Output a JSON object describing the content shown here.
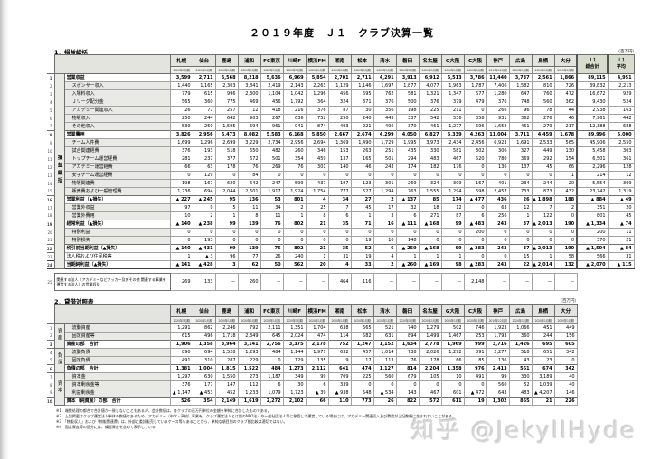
{
  "page": {
    "title": "２０１９年度　Ｊ１　クラブ決算一覧",
    "watermark": "知乎 @JekyllHyde"
  },
  "clubs": [
    "札幌",
    "仙台",
    "鹿島",
    "浦和",
    "FC東京",
    "川崎F",
    "横浜FM",
    "湘南",
    "松本",
    "清水",
    "磐田",
    "名古屋",
    "G大阪",
    "C大阪",
    "神戸",
    "広島",
    "鳥栖",
    "大分"
  ],
  "periods": [
    "2020年1月期",
    "2020年1月期",
    "2020年1月期",
    "2020年1月期",
    "2020年1月期",
    "2020年1月期",
    "2020年1月期",
    "2020年1月期",
    "2020年1月期",
    "2020年1月期",
    "2020年1月期",
    "2020年1月期",
    "2020年1月期",
    "2020年1月期",
    "2019年12月期",
    "2020年1月期",
    "2020年1月期",
    "2020年1月期"
  ],
  "summary_columns": [
    "Ｊ１\n総合計",
    "Ｊ１\n平均"
  ],
  "pl": {
    "section_title": "1．損益総括",
    "unit_label": "（百万円）",
    "group_label": "損益総括",
    "rows": [
      {
        "num": 1,
        "label": "営業収益",
        "level": 0,
        "bold": true,
        "values": [
          "3,599",
          "2,711",
          "6,568",
          "8,218",
          "5,636",
          "6,969",
          "5,854",
          "2,701",
          "2,711",
          "4,291",
          "3,913",
          "6,912",
          "6,513",
          "3,786",
          "11,440",
          "3,737",
          "2,561",
          "1,866",
          "89,115",
          "4,951"
        ]
      },
      {
        "num": 2,
        "label": "スポンサー収入",
        "level": 1,
        "bold": false,
        "values": [
          "1,440",
          "1,165",
          "2,303",
          "3,841",
          "2,419",
          "2,143",
          "2,263",
          "1,129",
          "1,146",
          "1,697",
          "1,877",
          "4,077",
          "1,963",
          "1,787",
          "7,406",
          "1,582",
          "810",
          "726",
          "39,832",
          "2,213"
        ]
      },
      {
        "num": 3,
        "label": "入場料収入",
        "level": 1,
        "bold": false,
        "values": [
          "779",
          "615",
          "996",
          "2,300",
          "1,104",
          "1,042",
          "1,296",
          "456",
          "695",
          "762",
          "581",
          "1,321",
          "1,347",
          "677",
          "1,280",
          "647",
          "760",
          "472",
          "16,672",
          "929"
        ]
      },
      {
        "num": 4,
        "label": "Ｊリーグ配分金",
        "level": 1,
        "bold": false,
        "values": [
          "565",
          "360",
          "775",
          "469",
          "456",
          "1,792",
          "364",
          "324",
          "371",
          "376",
          "500",
          "376",
          "379",
          "479",
          "376",
          "748",
          "560",
          "362",
          "9,430",
          "524"
        ]
      },
      {
        "num": 5,
        "label": "アカデミー関連収入",
        "level": 1,
        "bold": false,
        "values": [
          "26",
          "77",
          "257",
          "12",
          "418",
          "216",
          "376",
          "87",
          "30",
          "356",
          "198",
          "225",
          "211",
          "0",
          "266",
          "96",
          "78",
          "44",
          "2,938",
          "163"
        ]
      },
      {
        "num": 6,
        "label": "物販収入",
        "level": 1,
        "bold": false,
        "values": [
          "250",
          "244",
          "642",
          "903",
          "267",
          "636",
          "752",
          "250",
          "240",
          "443",
          "337",
          "542",
          "536",
          "358",
          "931",
          "362",
          "276",
          "46",
          "7,961",
          "442"
        ]
      },
      {
        "num": 7,
        "label": "その他収入",
        "level": 1,
        "bold": false,
        "values": [
          "539",
          "250",
          "1,595",
          "694",
          "961",
          "941",
          "874",
          "493",
          "221",
          "496",
          "370",
          "461",
          "1,277",
          "696",
          "1,652",
          "461",
          "279",
          "217",
          "12,388",
          "688"
        ]
      },
      {
        "num": 8,
        "label": "営業費用",
        "level": 0,
        "bold": true,
        "values": [
          "3,826",
          "2,956",
          "6,473",
          "8,082",
          "5,583",
          "6,168",
          "5,850",
          "2,667",
          "2,674",
          "4,299",
          "4,050",
          "6,827",
          "6,339",
          "4,263",
          "11,004",
          "3,711",
          "4,459",
          "1,678",
          "89,996",
          "5,000"
        ]
      },
      {
        "num": 9,
        "label": "チーム人件費",
        "level": 1,
        "bold": false,
        "values": [
          "1,699",
          "1,296",
          "2,699",
          "3,229",
          "2,734",
          "2,956",
          "2,694",
          "1,369",
          "1,490",
          "1,729",
          "1,995",
          "3,973",
          "2,434",
          "2,456",
          "6,923",
          "1,691",
          "2,533",
          "565",
          "45,906",
          "2,550"
        ]
      },
      {
        "num": 10,
        "label": "試合関連経費",
        "level": 1,
        "bold": false,
        "values": [
          "376",
          "193",
          "518",
          "650",
          "482",
          "260",
          "346",
          "153",
          "263",
          "251",
          "435",
          "330",
          "581",
          "302",
          "306",
          "327",
          "449",
          "130",
          "5,458",
          "303"
        ]
      },
      {
        "num": 11,
        "label": "トップチーム運営経費",
        "level": 1,
        "bold": false,
        "values": [
          "281",
          "237",
          "377",
          "672",
          "501",
          "354",
          "459",
          "137",
          "165",
          "501",
          "294",
          "483",
          "467",
          "520",
          "780",
          "369",
          "292",
          "154",
          "6,501",
          "361"
        ]
      },
      {
        "num": 12,
        "label": "アカデミー運営経費",
        "level": 1,
        "bold": false,
        "values": [
          "66",
          "63",
          "178",
          "76",
          "269",
          "76",
          "301",
          "140",
          "46",
          "243",
          "174",
          "182",
          "176",
          "0",
          "136",
          "137",
          "45",
          "66",
          "2,296",
          "128"
        ]
      },
      {
        "num": 13,
        "label": "女子チーム運営経費",
        "level": 1,
        "bold": false,
        "values": [
          "0",
          "129",
          "0",
          "84",
          "0",
          "0",
          "0",
          "0",
          "0",
          "0",
          "0",
          "0",
          "0",
          "0",
          "0",
          "0",
          "0",
          "1",
          "214",
          "12"
        ]
      },
      {
        "num": 14,
        "label": "物販関連費",
        "level": 1,
        "bold": false,
        "values": [
          "198",
          "167",
          "620",
          "642",
          "247",
          "599",
          "437",
          "197",
          "123",
          "301",
          "269",
          "324",
          "399",
          "167",
          "401",
          "234",
          "244",
          "20",
          "5,554",
          "309"
        ]
      },
      {
        "num": 15,
        "label": "販売費および一般管理費",
        "level": 1,
        "bold": false,
        "values": [
          "1,236",
          "694",
          "2,044",
          "2,601",
          "1,917",
          "1,924",
          "1,754",
          "777",
          "627",
          "1,294",
          "763",
          "1,555",
          "1,294",
          "698",
          "2,457",
          "733",
          "873",
          "432",
          "23,742",
          "1,319"
        ]
      },
      {
        "num": 16,
        "label": "営業利益（▲損失）",
        "level": 0,
        "bold": true,
        "values": [
          "▲ 227",
          "▲ 245",
          "95",
          "136",
          "53",
          "801",
          "4",
          "34",
          "27",
          "2",
          "▲ 137",
          "85",
          "174",
          "▲ 477",
          "436",
          "26",
          "▲ 1,898",
          "188",
          "▲ 884",
          "▲ 49"
        ]
      },
      {
        "num": 17,
        "label": "営業外収益",
        "level": 1,
        "bold": false,
        "values": [
          "97",
          "9",
          "5",
          "11",
          "34",
          "2",
          "25",
          "7",
          "45",
          "17",
          "32",
          "18",
          "12",
          "0",
          "63",
          "12",
          "7",
          "2",
          "351",
          "20"
        ]
      },
      {
        "num": 18,
        "label": "営業外費用",
        "level": 1,
        "bold": false,
        "values": [
          "10",
          "2",
          "1",
          "8",
          "11",
          "1",
          "8",
          "6",
          "1",
          "3",
          "6",
          "271",
          "87",
          "6",
          "256",
          "1",
          "122",
          "0",
          "801",
          "45"
        ]
      },
      {
        "num": 19,
        "label": "経常利益（▲損失）",
        "level": 0,
        "bold": true,
        "values": [
          "▲ 140",
          "▲ 238",
          "99",
          "139",
          "76",
          "802",
          "21",
          "35",
          "71",
          "16",
          "▲ 111",
          "▲ 168",
          "99",
          "▲ 483",
          "243",
          "37",
          "▲ 2,013",
          "190",
          "▲ 1,334",
          "▲ 74"
        ]
      },
      {
        "num": 20,
        "label": "特別利益",
        "level": 1,
        "bold": false,
        "values": [
          "0",
          "0",
          "0",
          "0",
          "0",
          "0",
          "0",
          "0",
          "0",
          "0",
          "0",
          "0",
          "0",
          "200",
          "0",
          "0",
          "0",
          "0",
          "200",
          "11"
        ]
      },
      {
        "num": 21,
        "label": "特別損失",
        "level": 1,
        "bold": false,
        "values": [
          "0",
          "193",
          "0",
          "0",
          "0",
          "0",
          "0",
          "0",
          "19",
          "10",
          "148",
          "0",
          "0",
          "0",
          "0",
          "0",
          "0",
          "0",
          "370",
          "21"
        ]
      },
      {
        "num": 22,
        "label": "税引前当期利益（▲損失）",
        "level": 0,
        "bold": true,
        "values": [
          "▲ 140",
          "▲ 431",
          "99",
          "139",
          "76",
          "802",
          "21",
          "35",
          "52",
          "6",
          "▲ 259",
          "▲ 168",
          "99",
          "▲ 283",
          "243",
          "37",
          "▲ 2,013",
          "190",
          "▲ 1,504",
          "▲ 84"
        ]
      },
      {
        "num": 23,
        "label": "法人税および住民税等",
        "level": 0,
        "bold": false,
        "values": [
          "1",
          "▲ 3",
          "96",
          "77",
          "26",
          "240",
          "1",
          "31",
          "19",
          "4",
          "1",
          "1",
          "1",
          "0",
          "0",
          "15",
          "1",
          "58",
          "566",
          "31"
        ]
      },
      {
        "num": 24,
        "label": "当期純利益（▲損失）",
        "level": 0,
        "bold": true,
        "strong": true,
        "values": [
          "▲ 141",
          "▲ 428",
          "3",
          "62",
          "50",
          "562",
          "20",
          "4",
          "33",
          "2",
          "▲ 260",
          "▲ 169",
          "98",
          "▲ 283",
          "243",
          "22",
          "▲ 2,014",
          "132",
          "▲ 2,070",
          "▲ 115"
        ]
      }
    ],
    "related_row": {
      "num": 25,
      "label": "関連する法人（アカデミーなどサッカー及びその他 関連する事業を運営する法人）の営業収益",
      "values": [
        "269",
        "133",
        "－",
        "260",
        "－",
        "－",
        "－",
        "464",
        "116",
        "－",
        "－",
        "－",
        "－",
        "2,148",
        "－",
        "－",
        "－",
        "－"
      ]
    }
  },
  "bs": {
    "section_title": "2．貸借対照表",
    "unit_label": "（百万円）",
    "groups": [
      {
        "label": "資産",
        "rows": [
          {
            "num": 1,
            "label": "流動資産",
            "total": false,
            "values": [
              "1,291",
              "862",
              "2,246",
              "792",
              "2,111",
              "1,351",
              "1,704",
              "638",
              "665",
              "521",
              "740",
              "1,279",
              "502",
              "746",
              "1,923",
              "1,066",
              "451",
              "449"
            ]
          },
          {
            "num": 2,
            "label": "固定資産等",
            "total": false,
            "values": [
              "615",
              "496",
              "1,718",
              "2,349",
              "645",
              "2,024",
              "474",
              "114",
              "582",
              "631",
              "894",
              "1,499",
              "1,467",
              "253",
              "1,793",
              "360",
              "244",
              "156"
            ]
          },
          {
            "num": 3,
            "label": "資産の部　合計",
            "total": true,
            "values": [
              "1,906",
              "1,358",
              "3,964",
              "3,141",
              "2,756",
              "3,375",
              "2,178",
              "752",
              "1,247",
              "1,152",
              "1,634",
              "2,778",
              "1,969",
              "999",
              "3,716",
              "1,426",
              "695",
              "605"
            ]
          }
        ]
      },
      {
        "label": "負債",
        "rows": [
          {
            "num": 4,
            "label": "流動負債",
            "total": false,
            "values": [
              "890",
              "694",
              "1,528",
              "1,293",
              "484",
              "1,144",
              "1,977",
              "632",
              "457",
              "1,014",
              "738",
              "2,026",
              "1,292",
              "891",
              "2,277",
              "518",
              "651",
              "342"
            ]
          },
          {
            "num": 5,
            "label": "固定負債",
            "total": false,
            "values": [
              "491",
              "310",
              "287",
              "229",
              "0",
              "129",
              "135",
              "9",
              "17",
              "113",
              "76",
              "178",
              "66",
              "85",
              "136",
              "43",
              "23",
              "0"
            ]
          },
          {
            "num": 6,
            "label": "負債の部　合計",
            "total": true,
            "values": [
              "1,381",
              "1,004",
              "1,815",
              "1,522",
              "484",
              "1,273",
              "2,112",
              "641",
              "474",
              "1,127",
              "814",
              "2,204",
              "1,358",
              "976",
              "2,413",
              "561",
              "674",
              "342"
            ]
          }
        ]
      },
      {
        "label": "資本",
        "rows": [
          {
            "num": 7,
            "label": "資本金",
            "total": false,
            "values": [
              "1,297",
              "630",
              "1,550",
              "273",
              "1,187",
              "349",
              "99",
              "709",
              "225",
              "560",
              "679",
              "105",
              "10",
              "491",
              "99",
              "330",
              "3,189",
              "40"
            ]
          },
          {
            "num": 8,
            "label": "資本剰余金等",
            "total": false,
            "values": [
              "376",
              "177",
              "147",
              "112",
              "6",
              "30",
              "6",
              "339",
              "0",
              "0",
              "0",
              "0",
              "0",
              "0",
              "560",
              "52",
              "1,039",
              "40"
            ]
          },
          {
            "num": 9,
            "label": "利益剰余金",
            "total": false,
            "values": [
              "▲ 1,147",
              "▲ 453",
              "452",
              "1,233",
              "1,079",
              "1,723",
              "▲ 39",
              "▲ 938",
              "548",
              "▲ 534",
              "143",
              "467",
              "601",
              "▲ 472",
              "643",
              "483",
              "▲ 4,207",
              "146"
            ]
          },
          {
            "num": 10,
            "label": "資本（純資産）の部　合計",
            "total": true,
            "values": [
              "526",
              "354",
              "2,149",
              "1,619",
              "2,272",
              "2,102",
              "66",
              "110",
              "773",
              "26",
              "822",
              "572",
              "611",
              "19",
              "1,302",
              "865",
              "21",
              "226"
            ]
          }
        ]
      }
    ]
  },
  "footnotes": [
    "※1　端数処理の都合で合計値が一致しないこともあるが、会計数値は、各クラブの百万円単位の金額を単純に合計したものである。",
    "※2　上記掲載はクラブ運営法人単体の数値であるため、アカデミー（中学・高校）事業を、クラブ運営法人とは別のNPO法人や一般社団法人等に移管して運営している場合には、アカデミー関連収入及び費用が上記数値に含まれないことがある。",
    "※3　「物販収入」および「物販関連費」は、外部に委託販売しているケース等もあることから、単純な項目別のクラブ間比較は適切ではない。",
    "※4　固定資産等の区分には、繰延資産を含めて表示している。"
  ]
}
